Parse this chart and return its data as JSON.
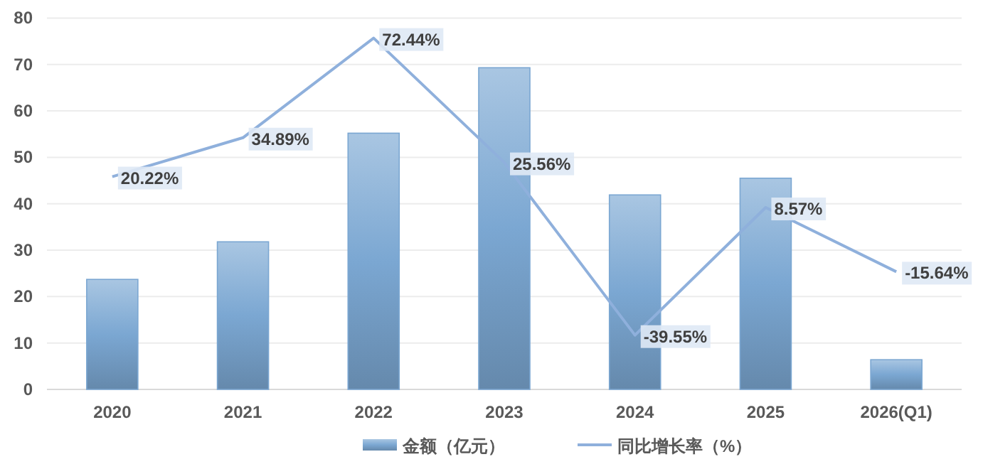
{
  "chart_data": {
    "type": "bar",
    "categories": [
      "2020",
      "2021",
      "2022",
      "2023",
      "2024",
      "2025",
      "2026(Q1)"
    ],
    "series": [
      {
        "name": "金额（亿元）",
        "color": "#7ba7d2",
        "values": [
          23.7,
          31.8,
          55.2,
          69.3,
          41.9,
          45.5,
          6.4
        ]
      },
      {
        "name": "同比增长率（%）",
        "type": "line",
        "axis": "y2",
        "color": "#8fb0dc",
        "values": [
          20.22,
          34.89,
          72.44,
          25.56,
          -39.55,
          8.57,
          -15.64
        ],
        "value_labels": [
          "20.22%",
          "34.89%",
          "72.44%",
          "25.56%",
          "-39.55%",
          "8.57%",
          "-15.64%"
        ]
      }
    ],
    "ylim": [
      0,
      80
    ],
    "yticks": [
      0,
      10,
      20,
      30,
      40,
      50,
      60,
      70,
      80
    ],
    "y2lim": [
      -60,
      80
    ],
    "grid": "y",
    "legend": "bottom",
    "marker": "none",
    "line_style": "solid"
  }
}
